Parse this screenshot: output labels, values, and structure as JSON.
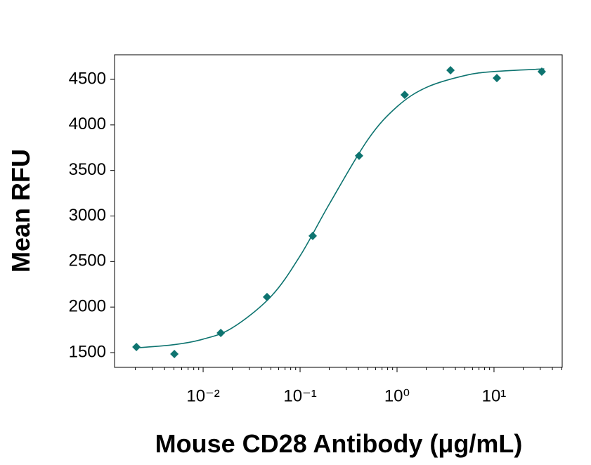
{
  "chart_data": {
    "type": "scatter",
    "x_label": "Mouse CD28 Antibody (μg/mL)",
    "y_label": "Mean RFU",
    "xscale": "log",
    "xlim": [
      0.00122,
      50.5
    ],
    "ylim": [
      1338,
      4770
    ],
    "xticks": [
      {
        "value": 0.01,
        "label": "10⁻²"
      },
      {
        "value": 0.1,
        "label": "10⁻¹"
      },
      {
        "value": 1,
        "label": "10⁰"
      },
      {
        "value": 10,
        "label": "10¹"
      }
    ],
    "xminorticks": [
      0.002,
      0.003,
      0.004,
      0.005,
      0.006,
      0.007,
      0.008,
      0.009,
      0.02,
      0.03,
      0.04,
      0.05,
      0.06,
      0.07,
      0.08,
      0.09,
      0.2,
      0.3,
      0.4,
      0.5,
      0.6,
      0.7,
      0.8,
      0.9,
      2,
      3,
      4,
      5,
      6,
      7,
      8,
      9,
      20,
      30,
      40,
      50
    ],
    "yticks": [
      1500,
      2000,
      2500,
      3000,
      3500,
      4000,
      4500
    ],
    "series": [
      {
        "kind": "points",
        "color": "#0e7470",
        "x": [
          0.00205,
          0.00505,
          0.0152,
          0.0456,
          0.135,
          0.406,
          1.2,
          3.56,
          10.7,
          31.1
        ],
        "values": [
          1562,
          1485,
          1716,
          2110,
          2781,
          3661,
          4330,
          4600,
          4515,
          4585
        ]
      },
      {
        "kind": "fit",
        "color": "#0e7470",
        "x": [
          0.002,
          0.005,
          0.01,
          0.02,
          0.05,
          0.1,
          0.2,
          0.5,
          1,
          2,
          5,
          10,
          33
        ],
        "values": [
          1551,
          1587,
          1648,
          1772,
          2115,
          2562,
          3130,
          3838,
          4200,
          4411,
          4542,
          4586,
          4615
        ]
      }
    ]
  }
}
